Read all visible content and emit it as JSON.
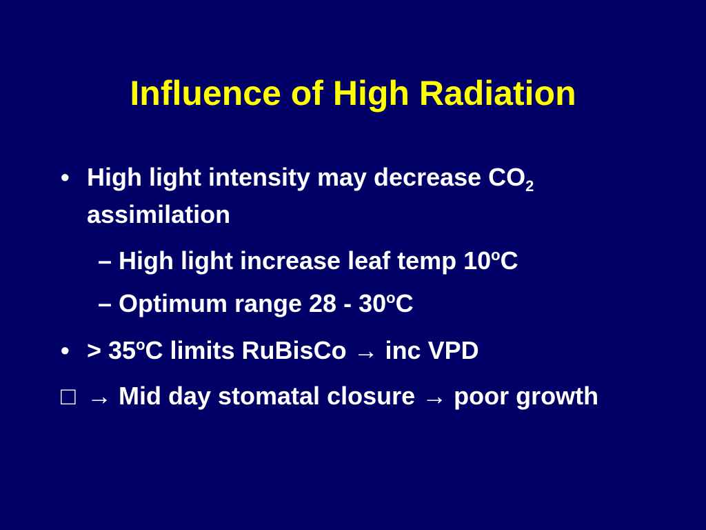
{
  "slide": {
    "title": "Influence of High Radiation",
    "items": [
      {
        "level": 1,
        "marker": "•",
        "runs": [
          {
            "text": "High light intensity may decrease CO"
          },
          {
            "sub": "2"
          },
          {
            "text": " assimilation"
          }
        ]
      },
      {
        "level": 2,
        "marker": "–",
        "runs": [
          {
            "text": "High light increase leaf temp 10"
          },
          {
            "sup": "o"
          },
          {
            "text": "C"
          }
        ]
      },
      {
        "level": 2,
        "marker": "–",
        "runs": [
          {
            "text": "Optimum range 28 - 30"
          },
          {
            "sup": "o"
          },
          {
            "text": "C"
          }
        ]
      },
      {
        "level": 1,
        "marker": "•",
        "runs": [
          {
            "text": "> 35"
          },
          {
            "sup": "o"
          },
          {
            "text": "C limits RuBisCo  → inc  VPD"
          }
        ]
      },
      {
        "level": 1,
        "marker": "□",
        "runs": [
          {
            "text": "→ Mid day stomatal closure → poor growth"
          }
        ]
      }
    ]
  }
}
